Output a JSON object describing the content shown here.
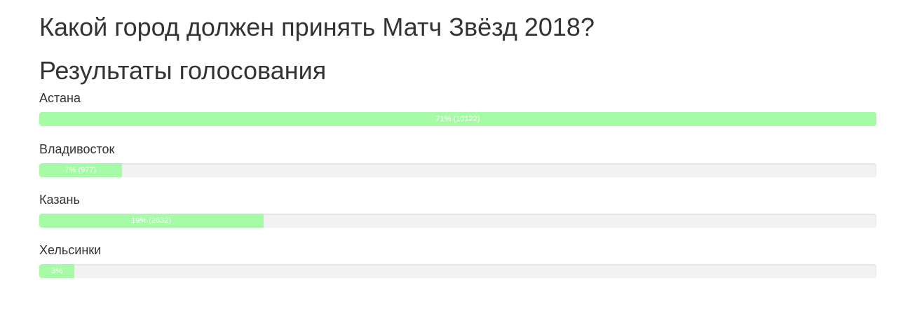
{
  "title": "Какой город должен принять Матч Звёзд 2018?",
  "results_heading": "Результаты голосования",
  "bar_color": "#a6fca6",
  "options": [
    {
      "name": "Астана",
      "percent": 71,
      "votes": 10122,
      "label": "71% (10122)"
    },
    {
      "name": "Владивосток",
      "percent": 7,
      "votes": 977,
      "label": "7% (977)"
    },
    {
      "name": "Казань",
      "percent": 19,
      "votes": 2632,
      "label": "19% (2632)"
    },
    {
      "name": "Хельсинки",
      "percent": 3,
      "label": "3%"
    }
  ]
}
